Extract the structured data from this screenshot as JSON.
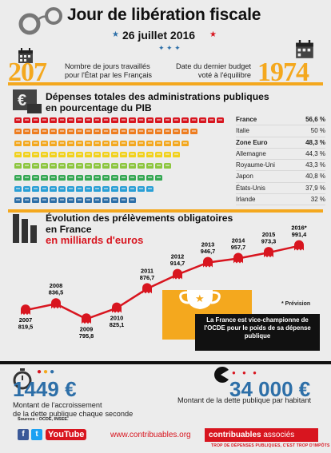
{
  "header": {
    "title": "Jour de libération fiscale",
    "date": "26 juillet 2016"
  },
  "stats": {
    "days_value": "207",
    "days_label_1": "Nombre de jours travaillés",
    "days_label_2": "pour l'État par les Français",
    "budget_label_1": "Date du dernier budget",
    "budget_label_2": "voté à l'équilibre",
    "budget_value": "1974"
  },
  "spending": {
    "title_1": "Dépenses totales des administrations publiques",
    "title_2": "en pourcentage du PIB",
    "rows": [
      {
        "country": "France",
        "value": "56,6 %",
        "pct": 56.6,
        "bold": true,
        "color": "#d8151f"
      },
      {
        "country": "Italie",
        "value": "50 %",
        "pct": 50,
        "bold": false,
        "color": "#ee7d1f"
      },
      {
        "country": "Zone Euro",
        "value": "48,3 %",
        "pct": 48.3,
        "bold": true,
        "color": "#f4a81e"
      },
      {
        "country": "Allemagne",
        "value": "44,3 %",
        "pct": 44.3,
        "bold": false,
        "color": "#f2d21c"
      },
      {
        "country": "Royaume-Uni",
        "value": "43,3 %",
        "pct": 43.3,
        "bold": false,
        "color": "#8cc63e"
      },
      {
        "country": "Japon",
        "value": "40,8 %",
        "pct": 40.8,
        "bold": false,
        "color": "#34a853"
      },
      {
        "country": "États-Unis",
        "value": "37,9 %",
        "pct": 37.9,
        "bold": false,
        "color": "#2a9fd6"
      },
      {
        "country": "Irlande",
        "value": "32 %",
        "pct": 32,
        "bold": false,
        "color": "#2d6fa8"
      }
    ]
  },
  "levies": {
    "title_1": "Évolution des prélèvements obligatoires",
    "title_2": "en France",
    "title_3": "en milliards d'euros",
    "forecast_note": "* Prévision",
    "points": [
      {
        "year": "2007",
        "value": "819,5",
        "v": 819.5
      },
      {
        "year": "2008",
        "value": "836,5",
        "v": 836.5
      },
      {
        "year": "2009",
        "value": "795,8",
        "v": 795.8
      },
      {
        "year": "2010",
        "value": "825,1",
        "v": 825.1
      },
      {
        "year": "2011",
        "value": "876,7",
        "v": 876.7
      },
      {
        "year": "2012",
        "value": "914,7",
        "v": 914.7
      },
      {
        "year": "2013",
        "value": "946,7",
        "v": 946.7
      },
      {
        "year": "2014",
        "value": "957,7",
        "v": 957.7
      },
      {
        "year": "2015",
        "value": "973,3",
        "v": 973.3
      },
      {
        "year": "2016*",
        "value": "991,4",
        "v": 991.4
      }
    ],
    "trophy_caption": "La France est vice-championne de l'OCDE pour le poids de sa dépense publique"
  },
  "debt": {
    "rate_value": "1449 €",
    "rate_label_1": "Montant de l'accroissement",
    "rate_label_2": "de la dette publique chaque seconde",
    "per_capita_value": "34 000 €",
    "per_capita_label": "Montant de la dette publique par habitant"
  },
  "footer": {
    "sources": "Sources : OCDE, INSEE.",
    "website": "www.contribuables.org",
    "logo_text_1": "contribuables",
    "logo_text_2": " associés",
    "logo_tagline": "TROP DE DÉPENSES PUBLIQUES, C'EST TROP D'IMPÔTS",
    "youtube": "YouTube",
    "facebook": "f",
    "twitter": "t"
  },
  "colors": {
    "accent": "#f4a81e",
    "red": "#d8151f",
    "blue": "#2d6fa8",
    "dark": "#111111"
  }
}
